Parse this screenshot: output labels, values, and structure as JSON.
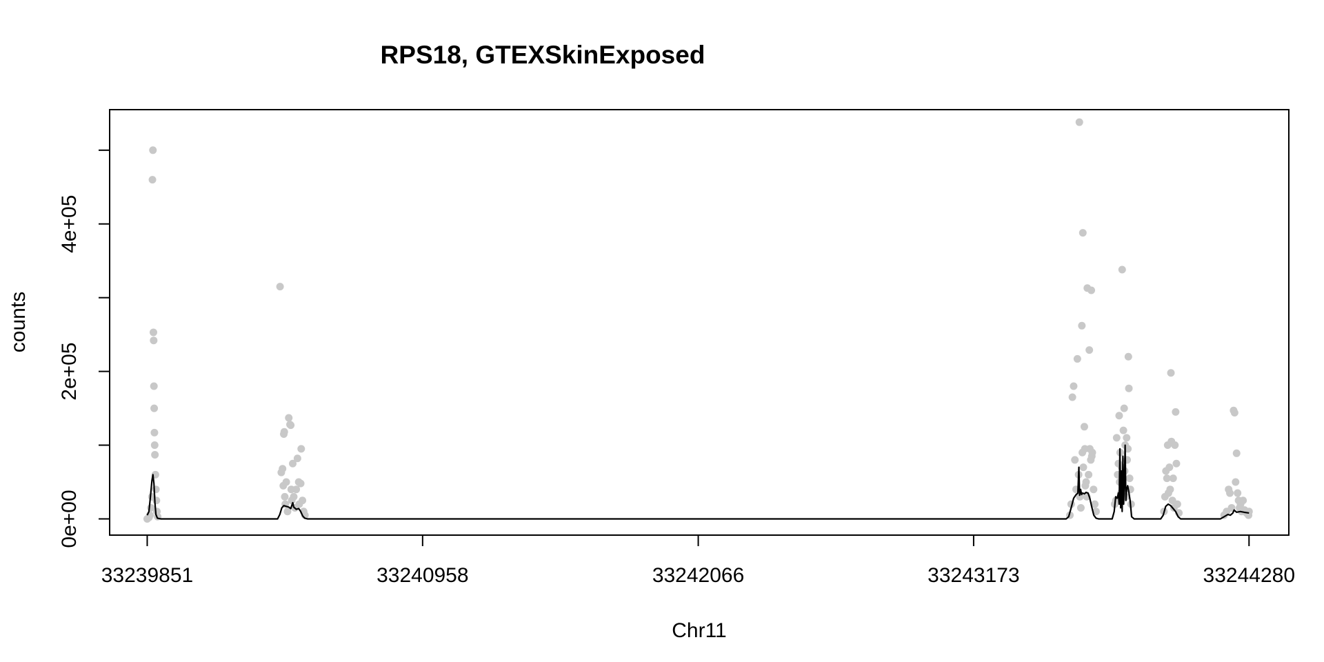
{
  "chart_data": {
    "type": "scatter",
    "title": "RPS18, GTEXSkinExposed",
    "xlabel": "Chr11",
    "ylabel": "counts",
    "xlim": [
      33239700,
      33244440
    ],
    "ylim": [
      -22000,
      555000
    ],
    "x_ticks": [
      33239851,
      33240958,
      33242066,
      33243173,
      33244280
    ],
    "x_tick_labels": [
      "33239851",
      "33240958",
      "33242066",
      "33243173",
      "33244280"
    ],
    "y_ticks": [
      0,
      100000,
      200000,
      300000,
      400000,
      500000
    ],
    "y_tick_labels": [
      "0e+00",
      "",
      "2e+05",
      "",
      "4e+05",
      ""
    ],
    "grid": false,
    "series": [
      {
        "kind": "points",
        "color": "#c8c8c8",
        "points": [
          [
            33239851,
            0
          ],
          [
            33239858,
            2000
          ],
          [
            33239862,
            5000
          ],
          [
            33239866,
            15000
          ],
          [
            33239870,
            30000
          ],
          [
            33239872,
            460000
          ],
          [
            33239874,
            500000
          ],
          [
            33239876,
            253000
          ],
          [
            33239877,
            242000
          ],
          [
            33239878,
            180000
          ],
          [
            33239879,
            150000
          ],
          [
            33239880,
            117000
          ],
          [
            33239881,
            100000
          ],
          [
            33239882,
            87000
          ],
          [
            33239884,
            60000
          ],
          [
            33239886,
            40000
          ],
          [
            33239888,
            25000
          ],
          [
            33239890,
            10000
          ],
          [
            33239893,
            3000
          ],
          [
            33240385,
            315000
          ],
          [
            33240390,
            63000
          ],
          [
            33240395,
            68000
          ],
          [
            33240398,
            45000
          ],
          [
            33240400,
            115000
          ],
          [
            33240402,
            118000
          ],
          [
            33240404,
            30000
          ],
          [
            33240406,
            20000
          ],
          [
            33240410,
            50000
          ],
          [
            33240415,
            10000
          ],
          [
            33240420,
            137000
          ],
          [
            33240425,
            128000
          ],
          [
            33240428,
            127000
          ],
          [
            33240430,
            40000
          ],
          [
            33240432,
            25000
          ],
          [
            33240436,
            75000
          ],
          [
            33240440,
            30000
          ],
          [
            33240445,
            15000
          ],
          [
            33240450,
            40000
          ],
          [
            33240455,
            82000
          ],
          [
            33240460,
            50000
          ],
          [
            33240462,
            20000
          ],
          [
            33240468,
            48000
          ],
          [
            33240470,
            95000
          ],
          [
            33240475,
            25000
          ],
          [
            33240480,
            10000
          ],
          [
            33240485,
            5000
          ],
          [
            33243560,
            5000
          ],
          [
            33243565,
            20000
          ],
          [
            33243570,
            165000
          ],
          [
            33243575,
            180000
          ],
          [
            33243580,
            80000
          ],
          [
            33243585,
            40000
          ],
          [
            33243590,
            217000
          ],
          [
            33243595,
            60000
          ],
          [
            33243598,
            538000
          ],
          [
            33243600,
            30000
          ],
          [
            33243604,
            15000
          ],
          [
            33243608,
            262000
          ],
          [
            33243610,
            90000
          ],
          [
            33243612,
            388000
          ],
          [
            33243614,
            70000
          ],
          [
            33243618,
            125000
          ],
          [
            33243620,
            95000
          ],
          [
            33243622,
            45000
          ],
          [
            33243625,
            50000
          ],
          [
            33243628,
            30000
          ],
          [
            33243630,
            313000
          ],
          [
            33243635,
            60000
          ],
          [
            33243638,
            229000
          ],
          [
            33243640,
            95000
          ],
          [
            33243644,
            80000
          ],
          [
            33243646,
            310000
          ],
          [
            33243648,
            85000
          ],
          [
            33243650,
            90000
          ],
          [
            33243655,
            40000
          ],
          [
            33243660,
            20000
          ],
          [
            33243665,
            10000
          ],
          [
            33243740,
            20000
          ],
          [
            33243745,
            25000
          ],
          [
            33243748,
            110000
          ],
          [
            33243752,
            60000
          ],
          [
            33243755,
            75000
          ],
          [
            33243758,
            140000
          ],
          [
            33243760,
            50000
          ],
          [
            33243762,
            90000
          ],
          [
            33243765,
            35000
          ],
          [
            33243768,
            70000
          ],
          [
            33243770,
            338000
          ],
          [
            33243772,
            45000
          ],
          [
            33243775,
            120000
          ],
          [
            33243778,
            150000
          ],
          [
            33243780,
            65000
          ],
          [
            33243782,
            100000
          ],
          [
            33243785,
            30000
          ],
          [
            33243788,
            110000
          ],
          [
            33243790,
            80000
          ],
          [
            33243793,
            95000
          ],
          [
            33243795,
            220000
          ],
          [
            33243797,
            177000
          ],
          [
            33243800,
            55000
          ],
          [
            33243803,
            40000
          ],
          [
            33243806,
            20000
          ],
          [
            33243938,
            10000
          ],
          [
            33243942,
            30000
          ],
          [
            33243946,
            65000
          ],
          [
            33243950,
            55000
          ],
          [
            33243953,
            100000
          ],
          [
            33243956,
            35000
          ],
          [
            33243960,
            70000
          ],
          [
            33243963,
            40000
          ],
          [
            33243966,
            198000
          ],
          [
            33243968,
            105000
          ],
          [
            33243972,
            25000
          ],
          [
            33243975,
            55000
          ],
          [
            33243978,
            15000
          ],
          [
            33243982,
            100000
          ],
          [
            33243985,
            145000
          ],
          [
            33243988,
            75000
          ],
          [
            33243992,
            20000
          ],
          [
            33243998,
            8000
          ],
          [
            33244180,
            5000
          ],
          [
            33244190,
            10000
          ],
          [
            33244198,
            40000
          ],
          [
            33244203,
            35000
          ],
          [
            33244210,
            15000
          ],
          [
            33244218,
            147000
          ],
          [
            33244222,
            144000
          ],
          [
            33244226,
            50000
          ],
          [
            33244230,
            89000
          ],
          [
            33244234,
            35000
          ],
          [
            33244238,
            25000
          ],
          [
            33244242,
            15000
          ],
          [
            33244246,
            20000
          ],
          [
            33244250,
            10000
          ],
          [
            33244256,
            25000
          ],
          [
            33244262,
            12000
          ],
          [
            33244270,
            8000
          ],
          [
            33244278,
            5000
          ],
          [
            33244280,
            10000
          ]
        ]
      },
      {
        "kind": "line",
        "color": "#000000",
        "points": [
          [
            33239851,
            5000
          ],
          [
            33239858,
            10000
          ],
          [
            33239864,
            30000
          ],
          [
            33239870,
            52000
          ],
          [
            33239874,
            60000
          ],
          [
            33239878,
            48000
          ],
          [
            33239882,
            22000
          ],
          [
            33239886,
            6000
          ],
          [
            33239892,
            1000
          ],
          [
            33239905,
            0
          ],
          [
            33240375,
            0
          ],
          [
            33240384,
            6000
          ],
          [
            33240392,
            15000
          ],
          [
            33240400,
            18000
          ],
          [
            33240410,
            17000
          ],
          [
            33240420,
            16000
          ],
          [
            33240428,
            14000
          ],
          [
            33240436,
            22000
          ],
          [
            33240440,
            16000
          ],
          [
            33240450,
            13000
          ],
          [
            33240460,
            14000
          ],
          [
            33240468,
            10000
          ],
          [
            33240476,
            4000
          ],
          [
            33240484,
            1000
          ],
          [
            33240495,
            0
          ],
          [
            33243545,
            0
          ],
          [
            33243555,
            3000
          ],
          [
            33243565,
            15000
          ],
          [
            33243575,
            28000
          ],
          [
            33243585,
            33000
          ],
          [
            33243592,
            35000
          ],
          [
            33243596,
            70000
          ],
          [
            33243599,
            32000
          ],
          [
            33243603,
            40000
          ],
          [
            33243607,
            33000
          ],
          [
            33243611,
            35000
          ],
          [
            33243618,
            34000
          ],
          [
            33243625,
            36000
          ],
          [
            33243633,
            35000
          ],
          [
            33243640,
            28000
          ],
          [
            33243648,
            16000
          ],
          [
            33243656,
            5000
          ],
          [
            33243665,
            1000
          ],
          [
            33243675,
            0
          ],
          [
            33243730,
            0
          ],
          [
            33243738,
            10000
          ],
          [
            33243744,
            30000
          ],
          [
            33243750,
            28000
          ],
          [
            33243755,
            35000
          ],
          [
            33243758,
            20000
          ],
          [
            33243761,
            95000
          ],
          [
            33243764,
            15000
          ],
          [
            33243767,
            65000
          ],
          [
            33243770,
            10000
          ],
          [
            33243773,
            85000
          ],
          [
            33243776,
            20000
          ],
          [
            33243779,
            50000
          ],
          [
            33243782,
            100000
          ],
          [
            33243785,
            25000
          ],
          [
            33243788,
            40000
          ],
          [
            33243792,
            45000
          ],
          [
            33243796,
            38000
          ],
          [
            33243802,
            25000
          ],
          [
            33243808,
            3000
          ],
          [
            33243818,
            0
          ],
          [
            33243925,
            0
          ],
          [
            33243935,
            5000
          ],
          [
            33243945,
            17000
          ],
          [
            33243955,
            20000
          ],
          [
            33243965,
            18000
          ],
          [
            33243975,
            14000
          ],
          [
            33243985,
            10000
          ],
          [
            33243995,
            3000
          ],
          [
            33244005,
            0
          ],
          [
            33244165,
            0
          ],
          [
            33244180,
            3000
          ],
          [
            33244195,
            6000
          ],
          [
            33244205,
            5000
          ],
          [
            33244215,
            8000
          ],
          [
            33244220,
            12000
          ],
          [
            33244230,
            9000
          ],
          [
            33244245,
            10000
          ],
          [
            33244260,
            9000
          ],
          [
            33244280,
            8000
          ]
        ]
      }
    ]
  }
}
